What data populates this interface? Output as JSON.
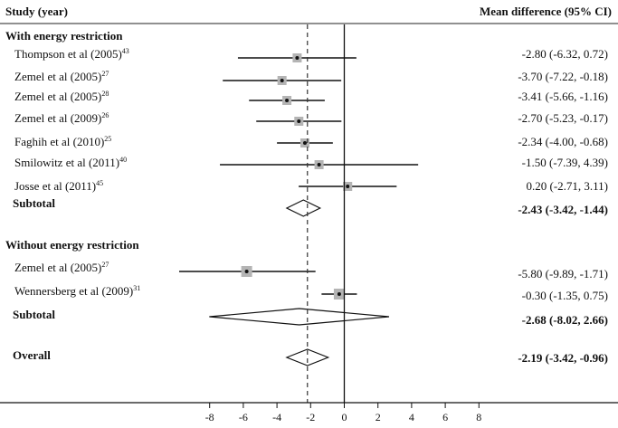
{
  "header": {
    "study_label": "Study (year)",
    "effect_label": "Mean difference (95% CI)"
  },
  "chart_data": {
    "type": "forest",
    "xlim": [
      -8,
      8
    ],
    "xticks": [
      -8,
      -6,
      -4,
      -2,
      0,
      2,
      4,
      6,
      8
    ],
    "pooled_reference": -2.19,
    "groups": [
      {
        "name": "With energy restriction",
        "studies": [
          {
            "name": "Thompson et al (2005)",
            "ref": "43",
            "md": -2.8,
            "lo": -6.32,
            "hi": 0.72,
            "ci_text": "-2.80 (-6.32, 0.72)"
          },
          {
            "name": "Zemel et al (2005)",
            "ref": "27",
            "md": -3.7,
            "lo": -7.22,
            "hi": -0.18,
            "ci_text": "-3.70 (-7.22, -0.18)"
          },
          {
            "name": "Zemel et al (2005)",
            "ref": "28",
            "md": -3.41,
            "lo": -5.66,
            "hi": -1.16,
            "ci_text": "-3.41 (-5.66, -1.16)"
          },
          {
            "name": "Zemel et al (2009)",
            "ref": "26",
            "md": -2.7,
            "lo": -5.23,
            "hi": -0.17,
            "ci_text": "-2.70 (-5.23, -0.17)"
          },
          {
            "name": "Faghih et al (2010)",
            "ref": "25",
            "md": -2.34,
            "lo": -4.0,
            "hi": -0.68,
            "ci_text": "-2.34 (-4.00, -0.68)"
          },
          {
            "name": "Smilowitz et al (2011)",
            "ref": "40",
            "md": -1.5,
            "lo": -7.39,
            "hi": 4.39,
            "ci_text": "-1.50 (-7.39, 4.39)"
          },
          {
            "name": "Josse et al (2011)",
            "ref": "45",
            "md": 0.2,
            "lo": -2.71,
            "hi": 3.11,
            "ci_text": "0.20 (-2.71, 3.11)"
          }
        ],
        "subtotal": {
          "label": "Subtotal",
          "md": -2.43,
          "lo": -3.42,
          "hi": -1.44,
          "ci_text": "-2.43 (-3.42, -1.44)"
        }
      },
      {
        "name": "Without energy restriction",
        "studies": [
          {
            "name": "Zemel et al (2005)",
            "ref": "27",
            "md": -5.8,
            "lo": -9.89,
            "hi": -1.71,
            "ci_text": "-5.80 (-9.89, -1.71)"
          },
          {
            "name": "Wennersberg et al (2009)",
            "ref": "31",
            "md": -0.3,
            "lo": -1.35,
            "hi": 0.75,
            "ci_text": "-0.30 (-1.35, 0.75)"
          }
        ],
        "subtotal": {
          "label": "Subtotal",
          "md": -2.68,
          "lo": -8.02,
          "hi": 2.66,
          "ci_text": "-2.68 (-8.02, 2.66)"
        }
      }
    ],
    "overall": {
      "label": "Overall",
      "md": -2.19,
      "lo": -3.42,
      "hi": -0.96,
      "ci_text": "-2.19 (-3.42, -0.96)"
    }
  }
}
